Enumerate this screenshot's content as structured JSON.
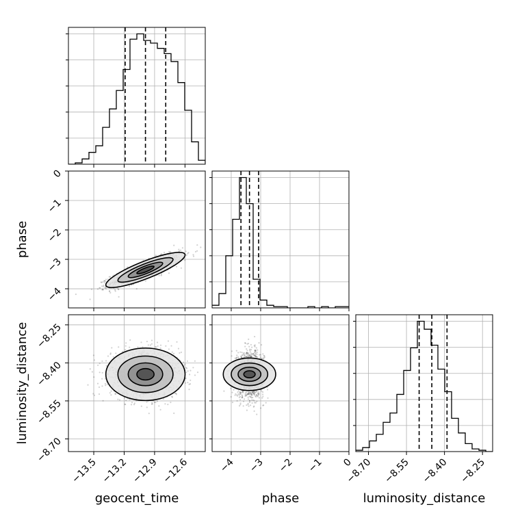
{
  "chart_data": {
    "type": "corner",
    "parameters": [
      "geocent_time",
      "phase",
      "luminosity_distance"
    ],
    "axis_labels": {
      "x": [
        "geocent_time",
        "phase",
        "luminosity_distance"
      ],
      "y": [
        "phase",
        "luminosity_distance"
      ]
    },
    "ranges": {
      "geocent_time": [
        -13.75,
        -12.4
      ],
      "phase": [
        -4.65,
        0.0
      ],
      "luminosity_distance": [
        -8.75,
        -8.21
      ]
    },
    "ticks": {
      "geocent_time": [
        -13.5,
        -13.2,
        -12.9,
        -12.6
      ],
      "phase": [
        -4,
        -3,
        -2,
        -1,
        0
      ],
      "luminosity_distance": [
        -8.7,
        -8.55,
        -8.4,
        -8.25
      ]
    },
    "tick_labels": {
      "geocent_time": [
        "−13.5",
        "−13.2",
        "−12.9",
        "−12.6"
      ],
      "phase": [
        "−4",
        "−3",
        "−2",
        "−1",
        "0"
      ],
      "phase_y": [
        "0",
        "−1",
        "−2",
        "−3",
        "−4"
      ],
      "luminosity_distance": [
        "−8.70",
        "−8.55",
        "−8.40",
        "−8.25"
      ]
    },
    "quantiles": {
      "geocent_time": [
        -13.19,
        -12.99,
        -12.79
      ],
      "phase": [
        -3.67,
        -3.38,
        -3.07
      ],
      "luminosity_distance": [
        -8.5,
        -8.45,
        -8.39
      ]
    },
    "histograms": {
      "geocent_time": {
        "bin_start": -13.75,
        "bin_width": 0.0675,
        "counts": [
          0,
          1,
          4,
          9,
          14,
          28,
          42,
          56,
          72,
          95,
          99,
          94,
          92,
          88,
          84,
          78,
          62,
          41,
          17,
          3,
          1,
          0
        ]
      },
      "phase": {
        "bin_start": -4.65,
        "bin_width": 0.2325,
        "counts": [
          2,
          11,
          40,
          68,
          100,
          80,
          22,
          6,
          2,
          1,
          1,
          0,
          0,
          0,
          1,
          0,
          1,
          0,
          1,
          1
        ]
      },
      "luminosity_distance": {
        "bin_start": -8.75,
        "bin_width": 0.027,
        "counts": [
          1,
          3,
          8,
          13,
          22,
          29,
          43,
          61,
          78,
          98,
          92,
          80,
          62,
          45,
          25,
          14,
          6,
          2,
          1,
          0
        ]
      }
    },
    "joint": {
      "geocent_time_vs_phase": {
        "center": [
          -12.99,
          -3.36
        ],
        "correlation": 0.85,
        "sigma": [
          0.17,
          0.26
        ]
      },
      "geocent_time_vs_luminosity_distance": {
        "center": [
          -12.99,
          -8.445
        ],
        "correlation": 0.0,
        "sigma": [
          0.17,
          0.045
        ]
      },
      "phase_vs_luminosity_distance": {
        "center": [
          -3.38,
          -8.445
        ],
        "correlation": 0.0,
        "sigma": [
          0.24,
          0.045
        ]
      }
    },
    "grid": true
  }
}
